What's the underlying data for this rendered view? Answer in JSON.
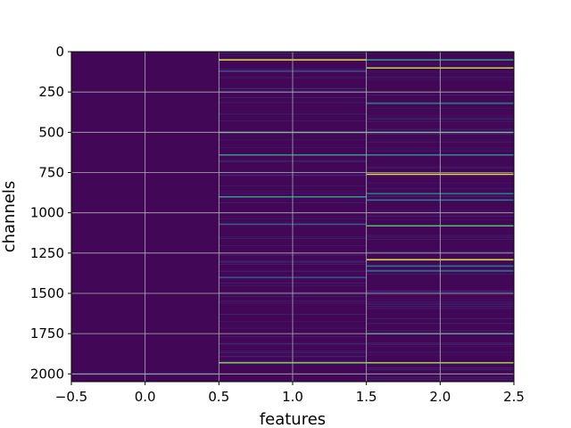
{
  "chart_data": {
    "type": "heatmap",
    "title": "",
    "xlabel": "features",
    "ylabel": "channels",
    "xlim": [
      -0.5,
      2.5
    ],
    "ylim": [
      2048,
      0
    ],
    "y_inverted": true,
    "colormap": "viridis",
    "grid": true,
    "columns": [
      0,
      1,
      2
    ],
    "n_channels": 2048,
    "background_value": 0.02,
    "x_ticks": [
      -0.5,
      0.0,
      0.5,
      1.0,
      1.5,
      2.0,
      2.5
    ],
    "x_tick_labels": [
      "−0.5",
      "0.0",
      "0.5",
      "1.0",
      "1.5",
      "2.0",
      "2.5"
    ],
    "y_ticks": [
      0,
      250,
      500,
      750,
      1000,
      1250,
      1500,
      1750,
      2000
    ],
    "y_tick_labels": [
      "0",
      "250",
      "500",
      "750",
      "1000",
      "1250",
      "1500",
      "1750",
      "2000"
    ],
    "highlights": [
      {
        "column": 0,
        "channel": 2000,
        "value": 0.25
      },
      {
        "column": 1,
        "channel": 50,
        "value": 0.95
      },
      {
        "column": 1,
        "channel": 120,
        "value": 0.25
      },
      {
        "column": 1,
        "channel": 500,
        "value": 0.6
      },
      {
        "column": 1,
        "channel": 640,
        "value": 0.55
      },
      {
        "column": 1,
        "channel": 900,
        "value": 0.55
      },
      {
        "column": 1,
        "channel": 1070,
        "value": 0.3
      },
      {
        "column": 1,
        "channel": 1400,
        "value": 0.25
      },
      {
        "column": 1,
        "channel": 1930,
        "value": 0.8
      },
      {
        "column": 2,
        "channel": 50,
        "value": 0.55
      },
      {
        "column": 2,
        "channel": 100,
        "value": 0.9
      },
      {
        "column": 2,
        "channel": 320,
        "value": 0.4
      },
      {
        "column": 2,
        "channel": 500,
        "value": 0.55
      },
      {
        "column": 2,
        "channel": 640,
        "value": 0.5
      },
      {
        "column": 2,
        "channel": 760,
        "value": 0.95
      },
      {
        "column": 2,
        "channel": 880,
        "value": 0.45
      },
      {
        "column": 2,
        "channel": 920,
        "value": 0.4
      },
      {
        "column": 2,
        "channel": 1080,
        "value": 0.7
      },
      {
        "column": 2,
        "channel": 1290,
        "value": 0.95
      },
      {
        "column": 2,
        "channel": 1330,
        "value": 0.4
      },
      {
        "column": 2,
        "channel": 1360,
        "value": 0.35
      },
      {
        "column": 2,
        "channel": 1750,
        "value": 0.4
      },
      {
        "column": 2,
        "channel": 1930,
        "value": 0.85
      }
    ]
  }
}
